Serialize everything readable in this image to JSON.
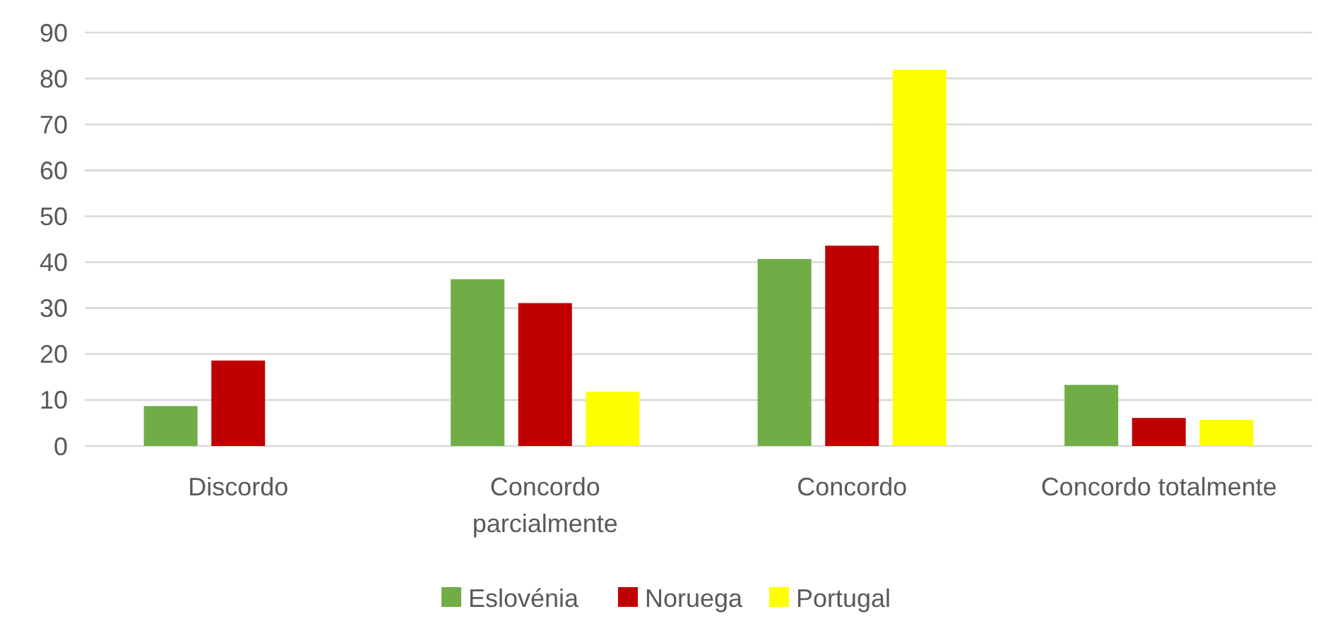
{
  "chart_data": {
    "type": "bar",
    "categories": [
      "Discordo",
      "Concordo parcialmente",
      "Concordo",
      "Concordo totalmente"
    ],
    "series": [
      {
        "name": "Eslovénia",
        "color": "#70ad47",
        "values": [
          8.7,
          36.3,
          40.7,
          13.3
        ]
      },
      {
        "name": "Noruega",
        "color": "#c00000",
        "values": [
          18.6,
          31.1,
          43.6,
          6.1
        ]
      },
      {
        "name": "Portugal",
        "color": "#ffff00",
        "values": [
          null,
          11.8,
          81.9,
          5.7
        ]
      }
    ],
    "ylim": [
      0,
      90
    ],
    "yticks": [
      0,
      10,
      20,
      30,
      40,
      50,
      60,
      70,
      80,
      90
    ],
    "grid": "y",
    "legend": "bottom"
  }
}
